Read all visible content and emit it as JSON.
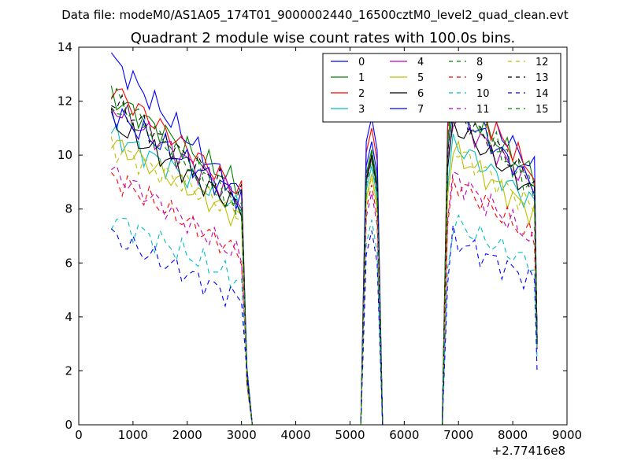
{
  "figure": {
    "suptitle": "Data file: modeM0/AS1A05_174T01_9000002440_16500cztM0_level2_quad_clean.evt"
  },
  "chart_data": {
    "type": "line",
    "title": "Quadrant 2 module wise count rates with 100.0s bins.",
    "xlabel": "",
    "ylabel": "",
    "x_offset_label": "+2.77416e8",
    "xlim": [
      0,
      9000
    ],
    "ylim": [
      0,
      14
    ],
    "xticks": [
      0,
      1000,
      2000,
      3000,
      4000,
      5000,
      6000,
      7000,
      8000,
      9000
    ],
    "yticks": [
      0,
      2,
      4,
      6,
      8,
      10,
      12,
      14
    ],
    "grid": false,
    "legend_position": "top-right",
    "segments": [
      {
        "x_start": 600,
        "x_end": 3100
      },
      {
        "x_start": 5300,
        "x_end": 5500
      },
      {
        "x_start": 6800,
        "x_end": 8400
      }
    ],
    "x_sampled": [
      600,
      700,
      800,
      900,
      1000,
      1100,
      1200,
      1300,
      1400,
      1500,
      1600,
      1700,
      1800,
      1900,
      2000,
      2100,
      2200,
      2300,
      2400,
      2500,
      2600,
      2700,
      2800,
      2900,
      3000,
      3100,
      3200,
      5200,
      5300,
      5400,
      5500,
      5600,
      6700,
      6800,
      6900,
      7000,
      7100,
      7200,
      7300,
      7400,
      7500,
      7600,
      7700,
      7800,
      7900,
      8000,
      8100,
      8200,
      8300,
      8400,
      8450
    ],
    "series": [
      {
        "name": "0",
        "color": "#0000ff",
        "dash": "solid",
        "start": 13.6,
        "end": 8.5,
        "peak2": 10.5,
        "start3": 12.9,
        "end3": 9.5,
        "final": 3.0
      },
      {
        "name": "1",
        "color": "#008000",
        "dash": "solid",
        "start": 12.2,
        "end": 8.8,
        "peak2": 10.2,
        "start3": 12.3,
        "end3": 9.2,
        "final": 3.1
      },
      {
        "name": "2",
        "color": "#ff0000",
        "dash": "solid",
        "start": 12.5,
        "end": 8.6,
        "peak2": 11.0,
        "start3": 12.8,
        "end3": 9.3,
        "final": 3.2
      },
      {
        "name": "3",
        "color": "#00bfbf",
        "dash": "solid",
        "start": 10.8,
        "end": 8.0,
        "peak2": 9.6,
        "start3": 10.6,
        "end3": 8.2,
        "final": 2.9
      },
      {
        "name": "4",
        "color": "#bf00bf",
        "dash": "solid",
        "start": 11.8,
        "end": 8.3,
        "peak2": 9.9,
        "start3": 11.7,
        "end3": 8.8,
        "final": 3.0
      },
      {
        "name": "5",
        "color": "#bfbf00",
        "dash": "solid",
        "start": 10.5,
        "end": 7.6,
        "peak2": 9.3,
        "start3": 10.3,
        "end3": 7.8,
        "final": 2.8
      },
      {
        "name": "6",
        "color": "#000000",
        "dash": "solid",
        "start": 11.2,
        "end": 8.0,
        "peak2": 10.0,
        "start3": 11.3,
        "end3": 8.6,
        "final": 3.0
      },
      {
        "name": "7",
        "color": "#0000ff",
        "dash": "solid",
        "start": 11.6,
        "end": 8.4,
        "peak2": 11.4,
        "start3": 12.0,
        "end3": 8.9,
        "final": 3.1
      },
      {
        "name": "8",
        "color": "#008000",
        "dash": "dashed",
        "start": 12.3,
        "end": 7.9,
        "peak2": 9.8,
        "start3": 12.4,
        "end3": 8.7,
        "final": 3.0
      },
      {
        "name": "9",
        "color": "#ff0000",
        "dash": "dashed",
        "start": 9.2,
        "end": 6.3,
        "peak2": 8.9,
        "start3": 9.2,
        "end3": 6.9,
        "final": 2.7
      },
      {
        "name": "10",
        "color": "#00bfbf",
        "dash": "dashed",
        "start": 7.7,
        "end": 5.3,
        "peak2": 7.6,
        "start3": 7.6,
        "end3": 5.9,
        "final": 2.4
      },
      {
        "name": "11",
        "color": "#bf00bf",
        "dash": "dashed",
        "start": 9.4,
        "end": 6.2,
        "peak2": 8.6,
        "start3": 9.4,
        "end3": 6.8,
        "final": 2.8
      },
      {
        "name": "12",
        "color": "#bfbf00",
        "dash": "dashed",
        "start": 10.3,
        "end": 7.8,
        "peak2": 9.2,
        "start3": 10.4,
        "end3": 8.0,
        "final": 2.9
      },
      {
        "name": "13",
        "color": "#000000",
        "dash": "dashed",
        "start": 12.0,
        "end": 8.4,
        "peak2": 10.0,
        "start3": 11.9,
        "end3": 9.0,
        "final": 3.1
      },
      {
        "name": "14",
        "color": "#0000ff",
        "dash": "dashed",
        "start": 7.0,
        "end": 4.6,
        "peak2": 7.2,
        "start3": 7.0,
        "end3": 5.3,
        "final": 1.9
      },
      {
        "name": "15",
        "color": "#008000",
        "dash": "dashed",
        "start": 11.9,
        "end": 8.0,
        "peak2": 10.1,
        "start3": 12.1,
        "end3": 8.8,
        "final": 3.0
      }
    ]
  }
}
